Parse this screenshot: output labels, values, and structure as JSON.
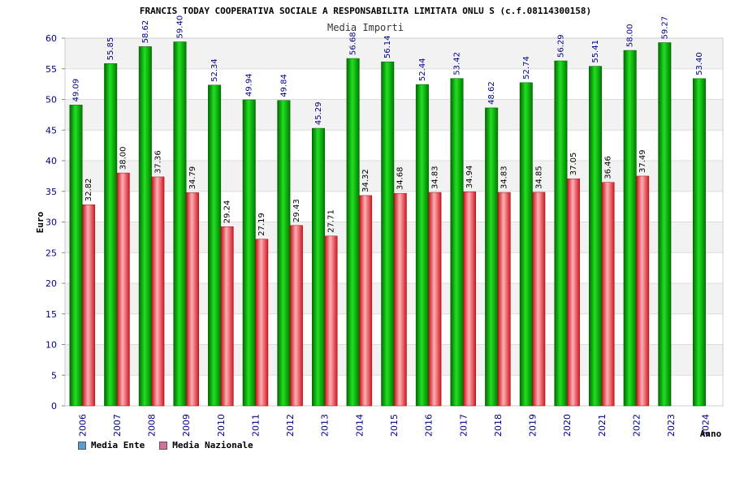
{
  "chart_data": {
    "type": "bar",
    "title": "FRANCIS TODAY COOPERATIVA SOCIALE A RESPONSABILITA LIMITATA ONLU S (c.f.08114300158)",
    "subtitle": "Media Importi",
    "xlabel": "Anno",
    "ylabel": "Euro",
    "ylim": [
      0,
      60
    ],
    "yticks": [
      0,
      5,
      10,
      15,
      20,
      25,
      30,
      35,
      40,
      45,
      50,
      55,
      60
    ],
    "grid": true,
    "legend_position": "bottom-left",
    "categories": [
      "2006",
      "2007",
      "2008",
      "2009",
      "2010",
      "2011",
      "2012",
      "2013",
      "2014",
      "2015",
      "2016",
      "2017",
      "2018",
      "2019",
      "2020",
      "2021",
      "2022",
      "2023",
      "2024"
    ],
    "series": [
      {
        "name": "Media Ente",
        "color": "#00b400",
        "legend_color": "#5b9bd5",
        "label_color": "#00008b",
        "values": [
          49.09,
          55.85,
          58.62,
          59.4,
          52.34,
          49.94,
          49.84,
          45.29,
          56.68,
          56.14,
          52.44,
          53.42,
          48.62,
          52.74,
          56.29,
          55.41,
          58.0,
          59.27,
          53.4
        ],
        "labels": [
          "49.09",
          "55.85",
          "58.62",
          "59.40",
          "52.34",
          "49.94",
          "49.84",
          "45.29",
          "56.68",
          "56.14",
          "52.44",
          "53.42",
          "48.62",
          "52.74",
          "56.29",
          "55.41",
          "58.00",
          "59.27",
          "53.40"
        ]
      },
      {
        "name": "Media Nazionale",
        "color": "#e8323c",
        "legend_color": "#d9709a",
        "label_color": "#000000",
        "values": [
          32.82,
          38.0,
          37.36,
          34.79,
          29.24,
          27.19,
          29.43,
          27.71,
          34.32,
          34.68,
          34.83,
          34.94,
          34.83,
          34.85,
          37.05,
          36.46,
          37.49,
          null,
          null
        ],
        "labels": [
          "32.82",
          "38.00",
          "37.36",
          "34.79",
          "29.24",
          "27.19",
          "29.43",
          "27.71",
          "34.32",
          "34.68",
          "34.83",
          "34.94",
          "34.83",
          "34.85",
          "37.05",
          "36.46",
          "37.49",
          null,
          null
        ]
      }
    ]
  }
}
